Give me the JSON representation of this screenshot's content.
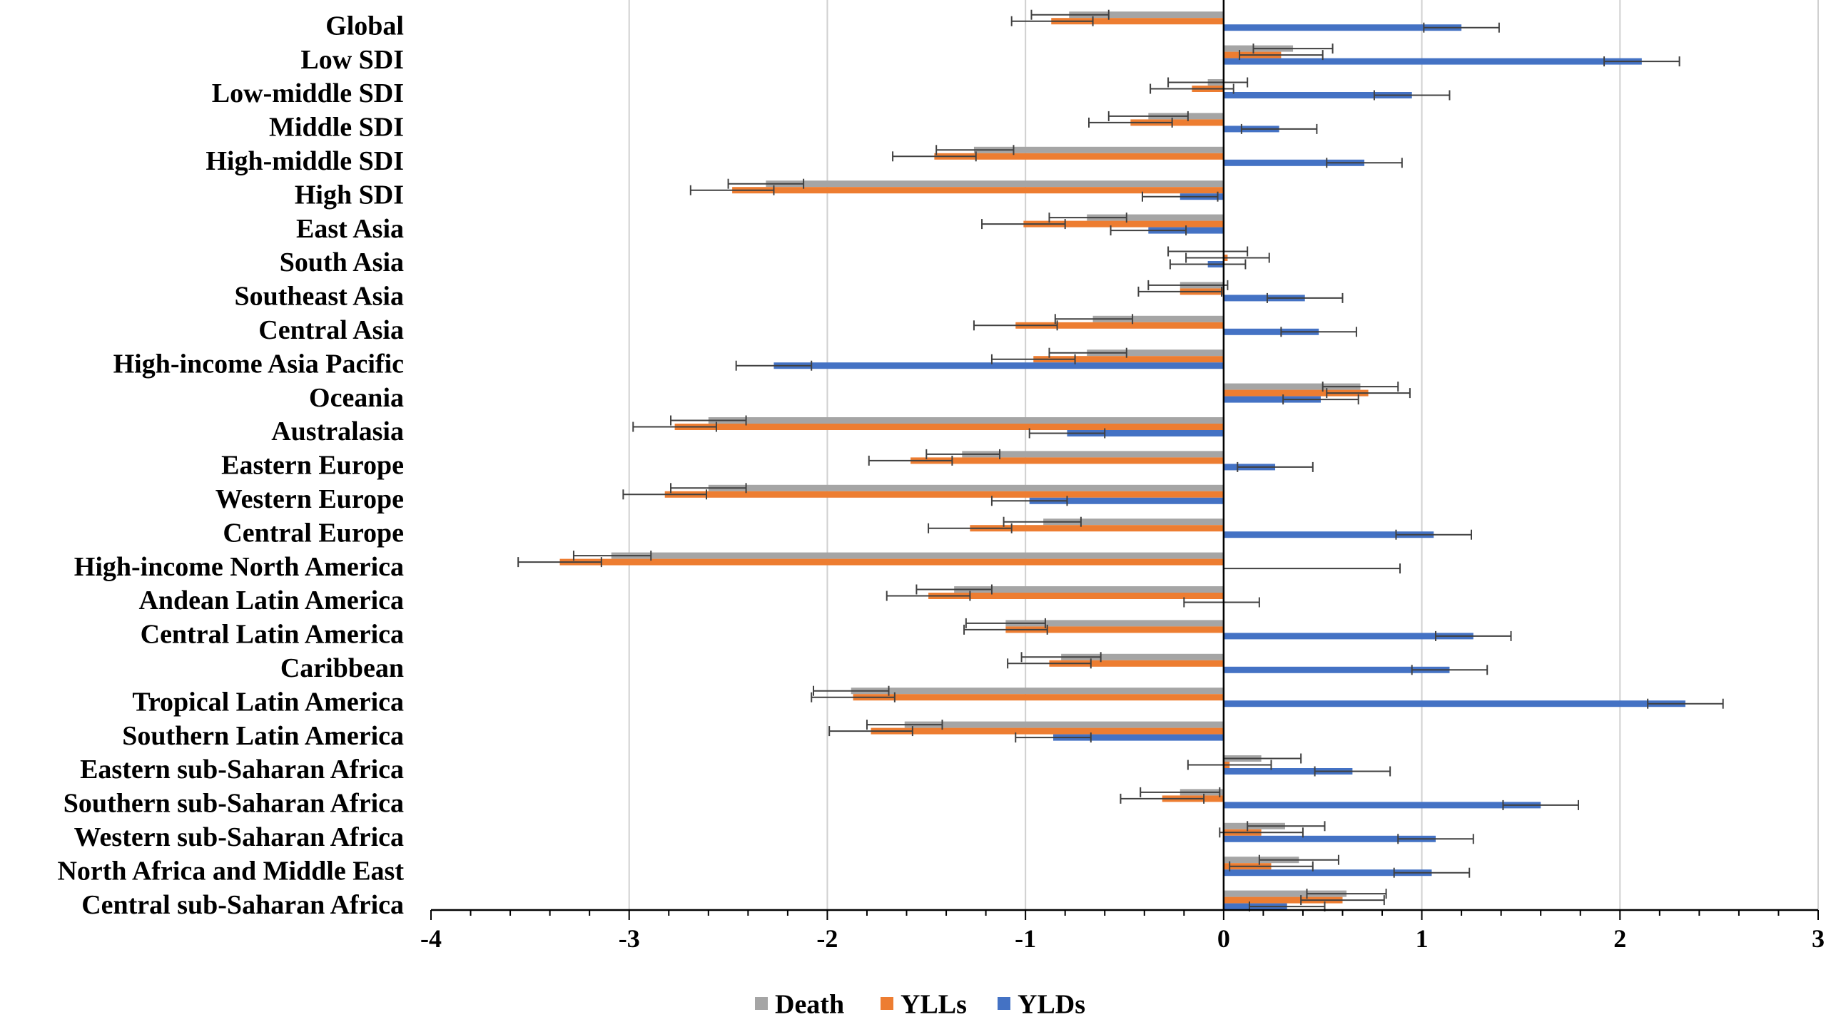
{
  "chart_data": {
    "type": "bar",
    "orientation": "horizontal",
    "title": "",
    "xlabel": "",
    "ylabel": "",
    "xlim": [
      -4,
      3
    ],
    "xticks": [
      -4,
      -3,
      -2,
      -1,
      0,
      1,
      2,
      3
    ],
    "grid": "vertical",
    "legend_position": "bottom-center",
    "categories": [
      "Global",
      "Low SDI",
      "Low-middle SDI",
      "Middle SDI",
      "High-middle SDI",
      "High SDI",
      "East Asia",
      "South Asia",
      "Southeast Asia",
      "Central Asia",
      "High-income Asia Pacific",
      "Oceania",
      "Australasia",
      "Eastern Europe",
      "Western Europe",
      "Central Europe",
      "High-income North America",
      "Andean Latin America",
      "Central Latin America",
      "Caribbean",
      "Tropical Latin America",
      "Southern Latin America",
      "Eastern sub-Saharan Africa",
      "Southern sub-Saharan Africa",
      "Western sub-Saharan Africa",
      "North Africa and Middle East ",
      "Central sub-Saharan Africa"
    ],
    "series": [
      {
        "name": "Death",
        "color": "#a5a5a5",
        "values": [
          -0.78,
          0.35,
          -0.08,
          -0.38,
          -1.26,
          -2.31,
          -0.69,
          0.0,
          -0.22,
          -0.66,
          -0.69,
          0.69,
          -2.6,
          -1.32,
          -2.6,
          -0.91,
          -3.09,
          -1.36,
          -1.1,
          -0.82,
          -1.88,
          -1.61,
          0.19,
          -0.22,
          0.31,
          0.38,
          0.62
        ],
        "lower": [
          -0.97,
          0.15,
          -0.28,
          -0.58,
          -1.45,
          -2.5,
          -0.88,
          -0.28,
          -0.38,
          -0.85,
          -0.88,
          0.5,
          -2.79,
          -1.5,
          -2.79,
          -1.11,
          -3.28,
          -1.55,
          -1.3,
          -1.02,
          -2.07,
          -1.8,
          0.0,
          -0.42,
          0.12,
          0.18,
          0.42
        ],
        "upper": [
          -0.58,
          0.55,
          0.12,
          -0.18,
          -1.06,
          -2.12,
          -0.49,
          0.12,
          0.02,
          -0.46,
          -0.49,
          0.88,
          -2.41,
          -1.13,
          -2.41,
          -0.72,
          -2.89,
          -1.17,
          -0.9,
          -0.62,
          -1.69,
          -1.42,
          0.39,
          -0.02,
          0.51,
          0.58,
          0.82
        ]
      },
      {
        "name": "YLLs",
        "color": "#ed7d31",
        "values": [
          -0.87,
          0.29,
          -0.16,
          -0.47,
          -1.46,
          -2.48,
          -1.01,
          0.02,
          -0.22,
          -1.05,
          -0.96,
          0.73,
          -2.77,
          -1.58,
          -2.82,
          -1.28,
          -3.35,
          -1.49,
          -1.1,
          -0.88,
          -1.87,
          -1.78,
          0.03,
          -0.31,
          0.19,
          0.24,
          0.6
        ],
        "lower": [
          -1.07,
          0.08,
          -0.37,
          -0.68,
          -1.67,
          -2.69,
          -1.22,
          -0.19,
          -0.43,
          -1.26,
          -1.17,
          0.52,
          -2.98,
          -1.79,
          -3.03,
          -1.49,
          -3.56,
          -1.7,
          -1.31,
          -1.09,
          -2.08,
          -1.99,
          -0.18,
          -0.52,
          -0.02,
          0.03,
          0.39
        ],
        "upper": [
          -0.66,
          0.5,
          0.05,
          -0.26,
          -1.25,
          -2.27,
          -0.8,
          0.23,
          -0.01,
          -0.84,
          -0.75,
          0.94,
          -2.56,
          -1.37,
          -2.61,
          -1.07,
          -3.14,
          -1.28,
          -0.89,
          -0.67,
          -1.66,
          -1.57,
          0.24,
          -0.1,
          0.4,
          0.45,
          0.81
        ]
      },
      {
        "name": "YLDs",
        "color": "#4472c4",
        "values": [
          1.2,
          2.11,
          0.95,
          0.28,
          0.71,
          -0.22,
          -0.38,
          -0.08,
          0.41,
          0.48,
          -2.27,
          0.49,
          -0.79,
          0.26,
          -0.98,
          1.06,
          0.0,
          0.0,
          1.26,
          1.14,
          2.33,
          -0.86,
          0.65,
          1.6,
          1.07,
          1.05,
          0.32
        ],
        "lower": [
          1.01,
          1.92,
          0.76,
          0.09,
          0.52,
          -0.41,
          -0.57,
          -0.27,
          0.22,
          0.29,
          -2.46,
          0.3,
          -0.98,
          0.07,
          -1.17,
          0.87,
          0.0,
          -0.2,
          1.07,
          0.95,
          2.14,
          -1.05,
          0.46,
          1.41,
          0.88,
          0.86,
          0.13
        ],
        "upper": [
          1.39,
          2.3,
          1.14,
          0.47,
          0.9,
          -0.03,
          -0.19,
          0.11,
          0.6,
          0.67,
          -2.08,
          0.68,
          -0.6,
          0.45,
          -0.79,
          1.25,
          0.89,
          0.18,
          1.45,
          1.33,
          2.52,
          -0.67,
          0.84,
          1.79,
          1.26,
          1.24,
          0.51
        ]
      }
    ]
  }
}
